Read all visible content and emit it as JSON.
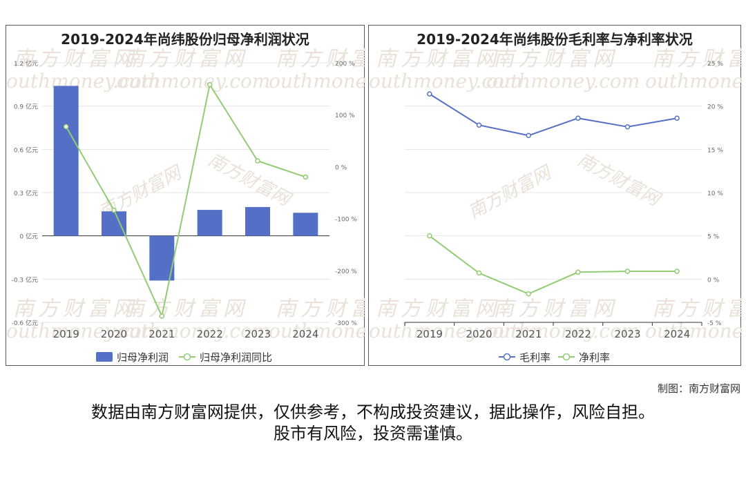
{
  "charts": [
    {
      "type": "bar+line",
      "title": "2019-2024年尚纬股份归母净利润状况",
      "categories": [
        "2019",
        "2020",
        "2021",
        "2022",
        "2023",
        "2024"
      ],
      "bar_series": {
        "name": "归母净利润",
        "color": "#5470c6",
        "values": [
          1.04,
          0.17,
          -0.31,
          0.18,
          0.2,
          0.16
        ]
      },
      "line_series": {
        "name": "归母净利润同比",
        "color": "#91cc75",
        "values": [
          77,
          -84,
          -288,
          158,
          11,
          -20
        ]
      },
      "y_left": {
        "ylim": [
          -0.6,
          1.2
        ],
        "ticks": [
          "1.2 亿元",
          "0.9 亿元",
          "0.6 亿元",
          "0.3 亿元",
          "0 亿元",
          "-0.3 亿元",
          "-0.6 亿元"
        ]
      },
      "y_right": {
        "ylim": [
          -300,
          200
        ],
        "ticks": [
          "200 %",
          "100 %",
          "0 %",
          "-100 %",
          "-200 %",
          "-300 %"
        ]
      },
      "legend": "bottom"
    },
    {
      "type": "line",
      "title": "2019-2024年尚纬股份毛利率与净利率状况",
      "categories": [
        "2019",
        "2020",
        "2021",
        "2022",
        "2023",
        "2024"
      ],
      "series": [
        {
          "name": "毛利率",
          "color": "#5470c6",
          "values": [
            21.4,
            17.8,
            16.6,
            18.6,
            17.6,
            18.6
          ]
        },
        {
          "name": "净利率",
          "color": "#91cc75",
          "values": [
            5.0,
            0.7,
            -1.7,
            0.8,
            0.9,
            0.9
          ]
        }
      ],
      "y_right": {
        "ylim": [
          -5,
          25
        ],
        "ticks": [
          "25 %",
          "20 %",
          "15 %",
          "10 %",
          "5 %",
          "0 %",
          "-5 %"
        ]
      },
      "legend": "bottom"
    }
  ],
  "watermark": {
    "cn": "南方财富网",
    "en": "outhmoney.com"
  },
  "footer": {
    "credit": "制图：南方财富网",
    "line1": "数据由南方财富网提供，仅供参考，不构成投资建议，据此操作，风险自担。",
    "line2": "股市有风险，投资需谨慎。"
  }
}
